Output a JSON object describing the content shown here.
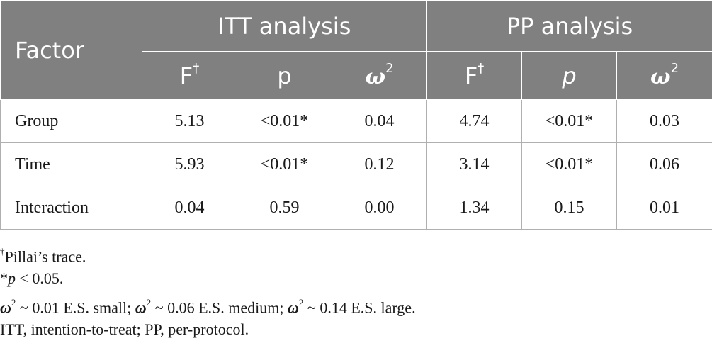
{
  "header": {
    "factor": "Factor",
    "itt": "ITT analysis",
    "pp": "PP analysis",
    "f": "F",
    "dagger": "†",
    "p": "p",
    "omega": "ω",
    "sq": "2"
  },
  "rows": [
    {
      "label": "Group",
      "itt_f": "5.13",
      "itt_p": "<0.01*",
      "itt_w": "0.04",
      "pp_f": "4.74",
      "pp_p": "<0.01*",
      "pp_w": "0.03"
    },
    {
      "label": "Time",
      "itt_f": "5.93",
      "itt_p": "<0.01*",
      "itt_w": "0.12",
      "pp_f": "3.14",
      "pp_p": "<0.01*",
      "pp_w": "0.06"
    },
    {
      "label": "Interaction",
      "itt_f": "0.04",
      "itt_p": "0.59",
      "itt_w": "0.00",
      "pp_f": "1.34",
      "pp_p": "0.15",
      "pp_w": "0.01"
    }
  ],
  "notes": {
    "dagger": "†",
    "pillai": "Pillai’s trace.",
    "star": "*",
    "p": "p",
    "p_threshold": " < 0.05.",
    "omega": "ω",
    "sq": "2",
    "small": " ~ 0.01 E.S. small; ",
    "medium": " ~ 0.06 E.S. medium; ",
    "large": " ~ 0.14 E.S. large.",
    "abbrev": "ITT, intention-to-treat; PP, per-protocol."
  }
}
